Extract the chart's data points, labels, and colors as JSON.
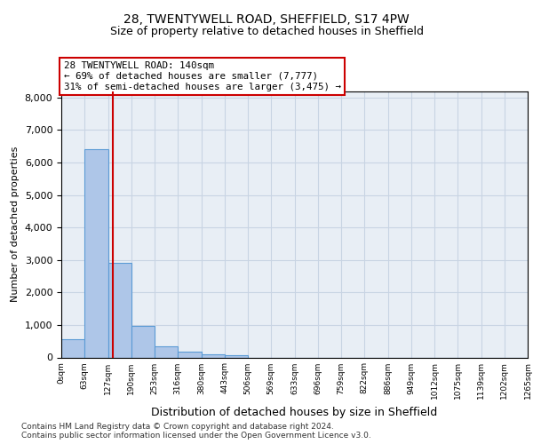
{
  "title1": "28, TWENTYWELL ROAD, SHEFFIELD, S17 4PW",
  "title2": "Size of property relative to detached houses in Sheffield",
  "xlabel": "Distribution of detached houses by size in Sheffield",
  "ylabel": "Number of detached properties",
  "bin_edges": [
    0,
    63,
    127,
    190,
    253,
    316,
    380,
    443,
    506,
    569,
    633,
    696,
    759,
    822,
    886,
    949,
    1012,
    1075,
    1139,
    1202,
    1265
  ],
  "bar_heights": [
    550,
    6400,
    2900,
    970,
    350,
    170,
    100,
    70,
    0,
    0,
    0,
    0,
    0,
    0,
    0,
    0,
    0,
    0,
    0,
    0
  ],
  "bar_color": "#aec6e8",
  "bar_edgecolor": "#5b9bd5",
  "property_size": 140,
  "property_line_color": "#cc0000",
  "annotation_line1": "28 TWENTYWELL ROAD: 140sqm",
  "annotation_line2": "← 69% of detached houses are smaller (7,777)",
  "annotation_line3": "31% of semi-detached houses are larger (3,475) →",
  "annotation_box_edgecolor": "#cc0000",
  "annotation_box_facecolor": "#ffffff",
  "ylim": [
    0,
    8200
  ],
  "yticks": [
    0,
    1000,
    2000,
    3000,
    4000,
    5000,
    6000,
    7000,
    8000
  ],
  "tick_labels": [
    "0sqm",
    "63sqm",
    "127sqm",
    "190sqm",
    "253sqm",
    "316sqm",
    "380sqm",
    "443sqm",
    "506sqm",
    "569sqm",
    "633sqm",
    "696sqm",
    "759sqm",
    "822sqm",
    "886sqm",
    "949sqm",
    "1012sqm",
    "1075sqm",
    "1139sqm",
    "1202sqm",
    "1265sqm"
  ],
  "grid_color": "#c8d4e3",
  "bg_color": "#e8eef5",
  "footer_text": "Contains HM Land Registry data © Crown copyright and database right 2024.\nContains public sector information licensed under the Open Government Licence v3.0.",
  "title1_fontsize": 10,
  "title2_fontsize": 9,
  "ylabel_fontsize": 8,
  "xlabel_fontsize": 9
}
